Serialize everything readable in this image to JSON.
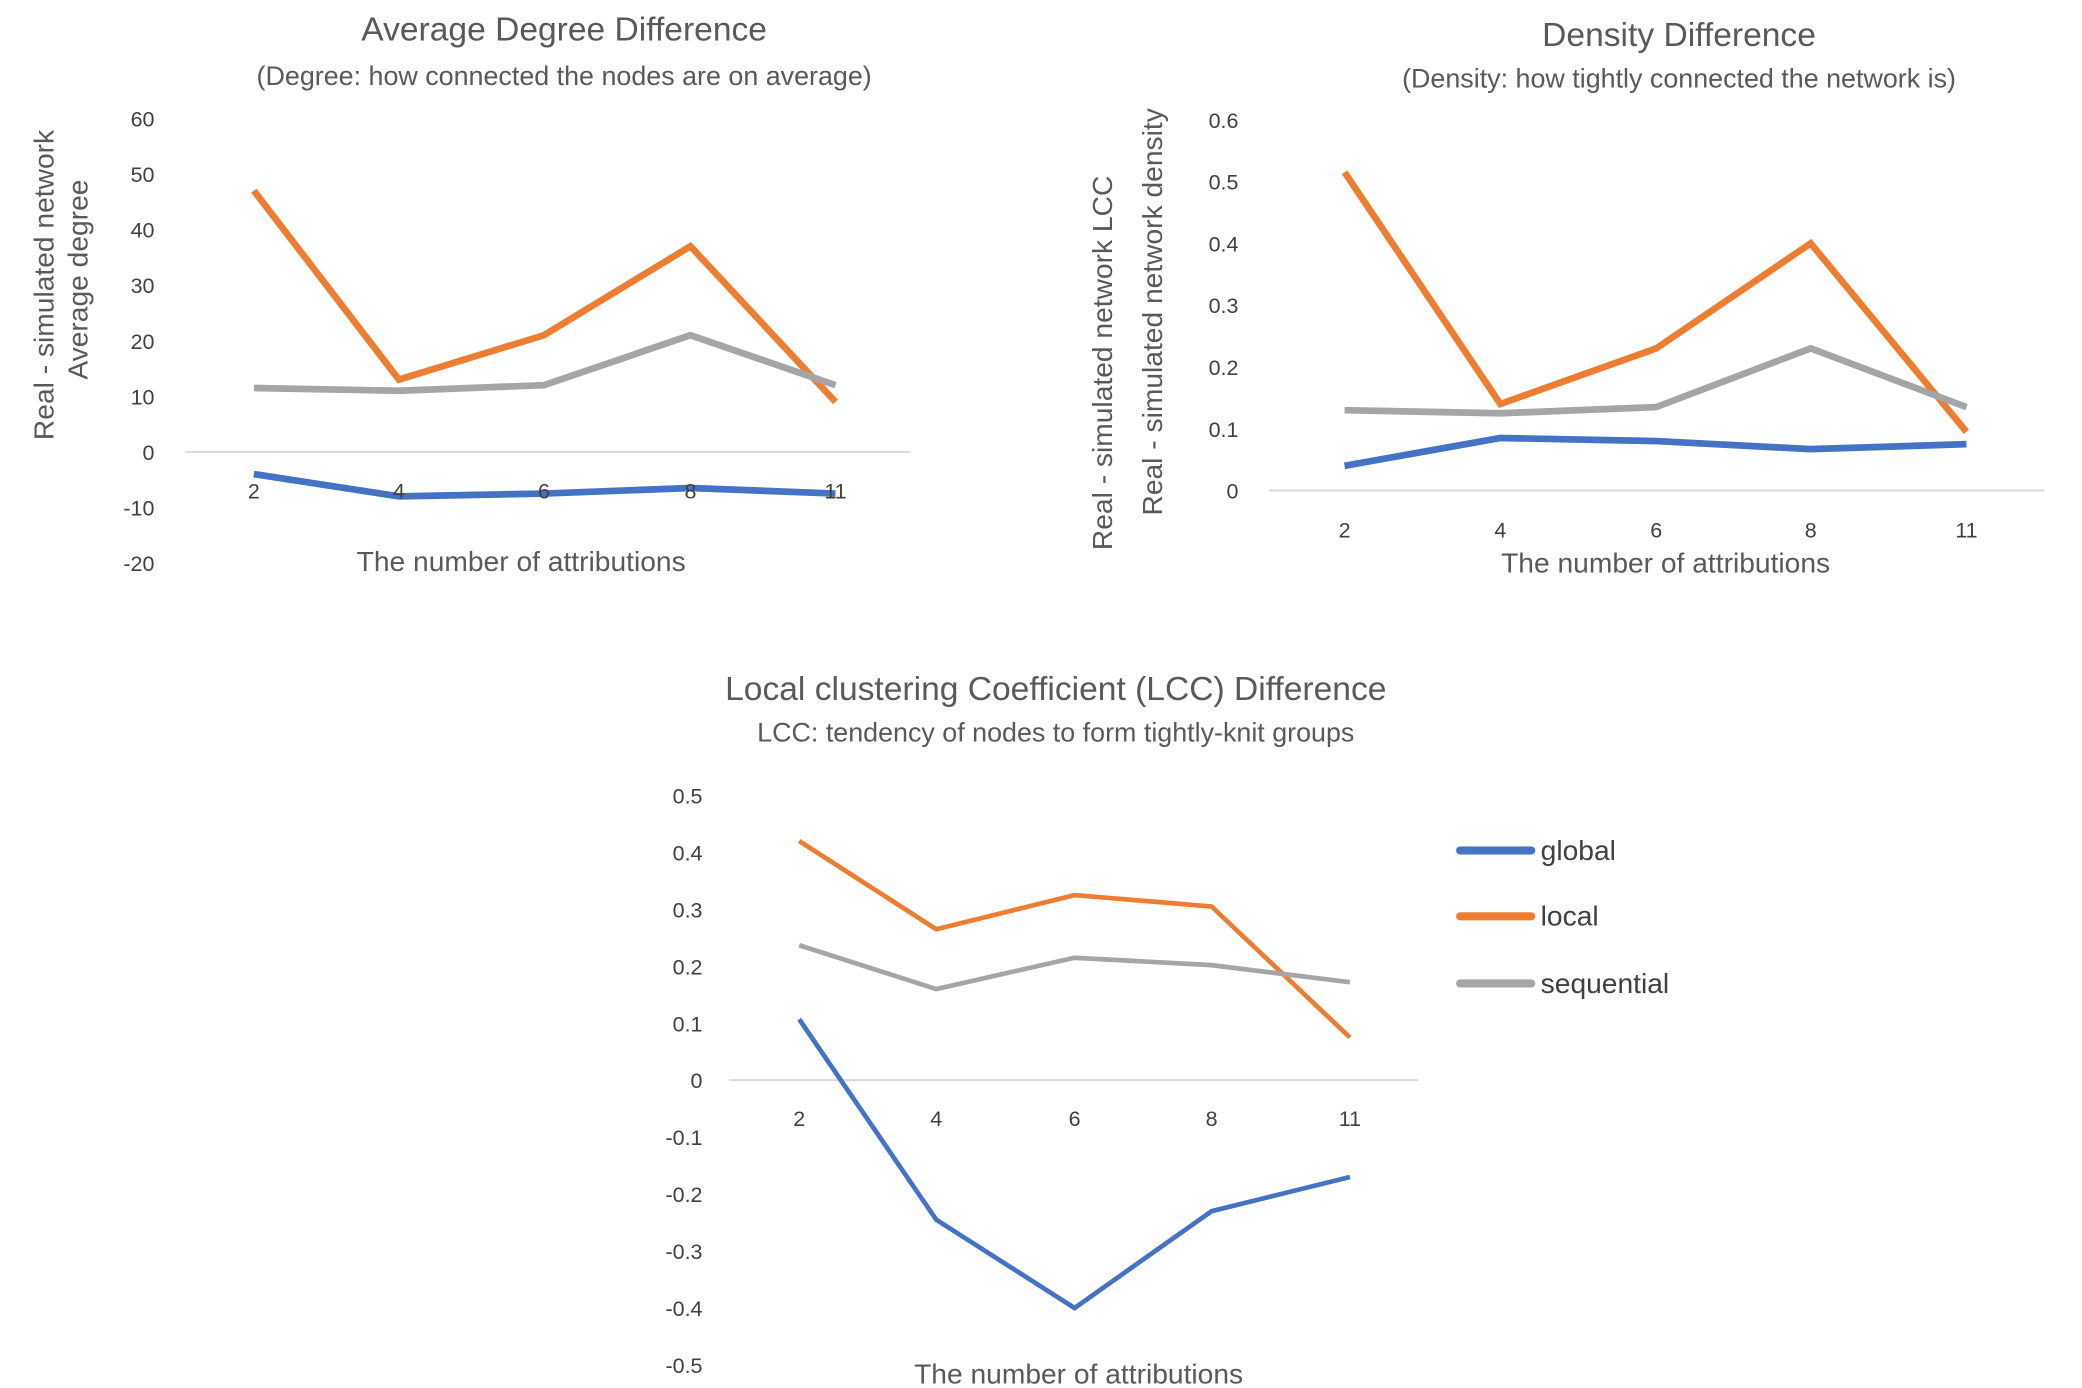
{
  "colors": {
    "global": "#4472C4",
    "local": "#ED7D31",
    "sequential": "#A5A5A5",
    "text": "#595959",
    "axis": "#D9D9D9"
  },
  "chart_data": [
    {
      "type": "line",
      "title": "Average Degree Difference",
      "subtitle": "(Degree: how connected the nodes are on average)",
      "xlabel": "The number of attributions",
      "ylabel_lines": [
        "Real -  simulated network",
        "Average degree"
      ],
      "categories": [
        "2",
        "4",
        "6",
        "8",
        "11"
      ],
      "ylim": [
        -20,
        60
      ],
      "yticks": [
        "60",
        "50",
        "40",
        "30",
        "20",
        "10",
        "0",
        "-10",
        "-20"
      ],
      "grid": false,
      "series": [
        {
          "key": "global",
          "values": [
            -4,
            -8,
            -7.5,
            -6.5,
            -7.5
          ]
        },
        {
          "key": "local",
          "values": [
            47,
            13,
            21,
            37,
            9
          ]
        },
        {
          "key": "sequential",
          "values": [
            11.5,
            11,
            12,
            21,
            12
          ]
        }
      ]
    },
    {
      "type": "line",
      "title": "Density Difference",
      "subtitle": "(Density: how tightly connected the network is)",
      "xlabel": "The number of attributions",
      "ylabel_lines": [
        "Real -  simulated network LCC",
        "Real -  simulated network density"
      ],
      "categories": [
        "2",
        "4",
        "6",
        "8",
        "11"
      ],
      "ylim": [
        0,
        0.6
      ],
      "yticks": [
        "0.6",
        "0.5",
        "0.4",
        "0.3",
        "0.2",
        "0.1",
        "0"
      ],
      "grid": false,
      "series": [
        {
          "key": "global",
          "values": [
            0.04,
            0.085,
            0.08,
            0.067,
            0.075
          ]
        },
        {
          "key": "local",
          "values": [
            0.515,
            0.14,
            0.23,
            0.4,
            0.095
          ]
        },
        {
          "key": "sequential",
          "values": [
            0.13,
            0.125,
            0.135,
            0.23,
            0.135
          ]
        }
      ]
    },
    {
      "type": "line",
      "title": "Local clustering Coefficient (LCC) Difference",
      "subtitle": "LCC: tendency of nodes to form tightly-knit groups",
      "xlabel": "The number of attributions",
      "categories": [
        "2",
        "4",
        "6",
        "8",
        "11"
      ],
      "ylim": [
        -0.5,
        0.5
      ],
      "yticks": [
        "0.5",
        "0.4",
        "0.3",
        "0.2",
        "0.1",
        "0",
        "-0.1",
        "-0.2",
        "-0.3",
        "-0.4",
        "-0.5"
      ],
      "grid": false,
      "legend_position": "right",
      "legend": [
        "global",
        "local",
        "sequential"
      ],
      "series": [
        {
          "key": "global",
          "name": "global",
          "values": [
            0.107,
            -0.245,
            -0.4,
            -0.23,
            -0.17
          ]
        },
        {
          "key": "local",
          "name": "local",
          "values": [
            0.42,
            0.265,
            0.325,
            0.305,
            0.075
          ]
        },
        {
          "key": "sequential",
          "name": "sequential",
          "values": [
            0.237,
            0.16,
            0.215,
            0.202,
            0.172
          ]
        }
      ]
    }
  ]
}
